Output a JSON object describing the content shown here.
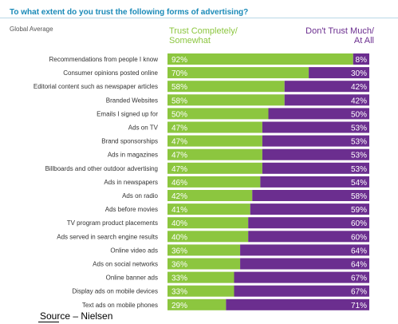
{
  "chart_data": {
    "type": "bar",
    "orientation": "horizontal",
    "stacked": true,
    "title": "To what extent do you trust the following forms of advertising?",
    "subtitle": "Global Average",
    "xlim": [
      0,
      100
    ],
    "grid": false,
    "legend_position": "top",
    "categories": [
      "Recommendations from people I know",
      "Consumer opinions posted online",
      "Editorial content such as newspaper articles",
      "Branded Websites",
      "Emails I signed up for",
      "Ads on TV",
      "Brand sponsorships",
      "Ads in magazines",
      "Billboards and other outdoor advertising",
      "Ads in newspapers",
      "Ads on radio",
      "Ads before movies",
      "TV program product placements",
      "Ads served in search engine results",
      "Online video ads",
      "Ads on social networks",
      "Online banner ads",
      "Display ads on mobile devices",
      "Text ads on mobile phones"
    ],
    "series": [
      {
        "name": "Trust Completely/ Somewhat",
        "color": "#8cc63f",
        "values": [
          92,
          70,
          58,
          58,
          50,
          47,
          47,
          47,
          47,
          46,
          42,
          41,
          40,
          40,
          36,
          36,
          33,
          33,
          29
        ],
        "labels": [
          "92%",
          "70%",
          "58%",
          "58%",
          "50%",
          "47%",
          "47%",
          "47%",
          "47%",
          "46%",
          "42%",
          "41%",
          "40%",
          "40%",
          "36%",
          "36%",
          "33%",
          "33%",
          "29%"
        ]
      },
      {
        "name": "Don't Trust Much/ At All",
        "color": "#6b2e8f",
        "values": [
          8,
          30,
          42,
          42,
          50,
          53,
          53,
          53,
          53,
          54,
          58,
          59,
          60,
          60,
          64,
          64,
          67,
          67,
          71
        ],
        "labels": [
          "8%",
          "30%",
          "42%",
          "42%",
          "50%",
          "53%",
          "53%",
          "53%",
          "53%",
          "54%",
          "58%",
          "59%",
          "60%",
          "60%",
          "64%",
          "64%",
          "67%",
          "67%",
          "71%"
        ]
      }
    ],
    "legend": {
      "trust_line1": "Trust Completely/",
      "trust_line2": "Somewhat",
      "distrust_line1": "Don't Trust Much/",
      "distrust_line2": "At All"
    }
  },
  "source": "Source – Nielsen"
}
